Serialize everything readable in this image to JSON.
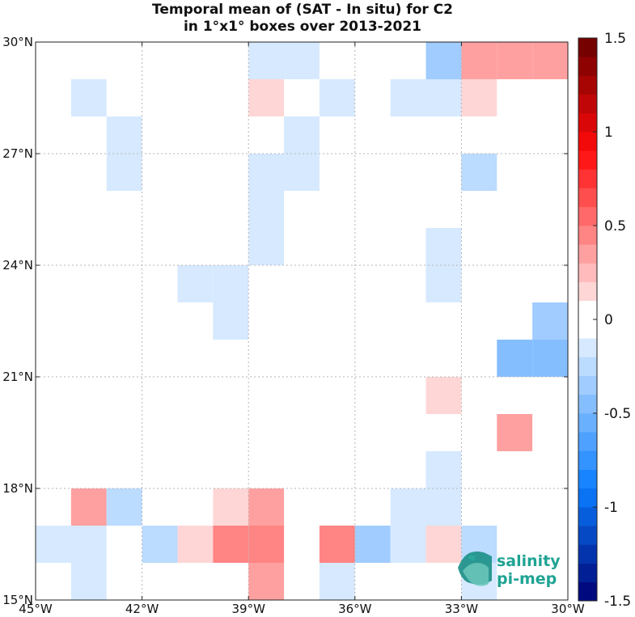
{
  "chart_data": {
    "type": "heatmap",
    "title": "Temporal mean of (SAT - In situ) for C2",
    "subtitle": "in 1°x1° boxes over 2013-2021",
    "xlabel": "",
    "ylabel": "",
    "xlim": [
      -45,
      -30
    ],
    "ylim": [
      15,
      30
    ],
    "x_ticks": [
      {
        "value": -45,
        "label": "45°W"
      },
      {
        "value": -42,
        "label": "42°W"
      },
      {
        "value": -39,
        "label": "39°W"
      },
      {
        "value": -36,
        "label": "36°W"
      },
      {
        "value": -33,
        "label": "33°W"
      },
      {
        "value": -30,
        "label": "30°W"
      }
    ],
    "y_ticks": [
      {
        "value": 15,
        "label": "15°N"
      },
      {
        "value": 18,
        "label": "18°N"
      },
      {
        "value": 21,
        "label": "21°N"
      },
      {
        "value": 24,
        "label": "24°N"
      },
      {
        "value": 27,
        "label": "27°N"
      },
      {
        "value": 30,
        "label": "30°N"
      }
    ],
    "grid": true,
    "colorbar": {
      "min": -1.5,
      "max": 1.5,
      "levels": 30,
      "ticks": [
        {
          "value": 1.5,
          "label": "1.5"
        },
        {
          "value": 1,
          "label": "1"
        },
        {
          "value": 0.5,
          "label": "0.5"
        },
        {
          "value": 0,
          "label": "0"
        },
        {
          "value": -0.5,
          "label": "-0.5"
        },
        {
          "value": -1,
          "label": "-1"
        },
        {
          "value": -1.5,
          "label": "-1.5"
        }
      ]
    },
    "cells": [
      {
        "lon": -39,
        "lat": 29,
        "value": -0.15
      },
      {
        "lon": -38,
        "lat": 29,
        "value": -0.15
      },
      {
        "lon": -34,
        "lat": 29,
        "value": -0.3
      },
      {
        "lon": -33,
        "lat": 29,
        "value": 0.35
      },
      {
        "lon": -32,
        "lat": 29,
        "value": 0.35
      },
      {
        "lon": -31,
        "lat": 29,
        "value": 0.35
      },
      {
        "lon": -44,
        "lat": 28,
        "value": -0.15
      },
      {
        "lon": -39,
        "lat": 28,
        "value": 0.15
      },
      {
        "lon": -37,
        "lat": 28,
        "value": -0.15
      },
      {
        "lon": -35,
        "lat": 28,
        "value": -0.15
      },
      {
        "lon": -34,
        "lat": 28,
        "value": -0.15
      },
      {
        "lon": -33,
        "lat": 28,
        "value": 0.15
      },
      {
        "lon": -43,
        "lat": 27,
        "value": -0.15
      },
      {
        "lon": -38,
        "lat": 27,
        "value": -0.15
      },
      {
        "lon": -43,
        "lat": 26,
        "value": -0.15
      },
      {
        "lon": -39,
        "lat": 26,
        "value": -0.15
      },
      {
        "lon": -38,
        "lat": 26,
        "value": -0.15
      },
      {
        "lon": -33,
        "lat": 26,
        "value": -0.25
      },
      {
        "lon": -39,
        "lat": 25,
        "value": -0.15
      },
      {
        "lon": -39,
        "lat": 24,
        "value": -0.15
      },
      {
        "lon": -34,
        "lat": 24,
        "value": -0.15
      },
      {
        "lon": -41,
        "lat": 23,
        "value": -0.15
      },
      {
        "lon": -40,
        "lat": 23,
        "value": -0.15
      },
      {
        "lon": -34,
        "lat": 23,
        "value": -0.15
      },
      {
        "lon": -40,
        "lat": 22,
        "value": -0.15
      },
      {
        "lon": -31,
        "lat": 22,
        "value": -0.35
      },
      {
        "lon": -32,
        "lat": 21,
        "value": -0.5
      },
      {
        "lon": -31,
        "lat": 21,
        "value": -0.5
      },
      {
        "lon": -34,
        "lat": 20,
        "value": 0.15
      },
      {
        "lon": -32,
        "lat": 19,
        "value": 0.3
      },
      {
        "lon": -34,
        "lat": 18,
        "value": -0.15
      },
      {
        "lon": -44,
        "lat": 17,
        "value": 0.3
      },
      {
        "lon": -43,
        "lat": 17,
        "value": -0.25
      },
      {
        "lon": -40,
        "lat": 17,
        "value": 0.15
      },
      {
        "lon": -39,
        "lat": 17,
        "value": 0.3
      },
      {
        "lon": -35,
        "lat": 17,
        "value": -0.15
      },
      {
        "lon": -34,
        "lat": 17,
        "value": -0.15
      },
      {
        "lon": -45,
        "lat": 16,
        "value": -0.15
      },
      {
        "lon": -44,
        "lat": 16,
        "value": -0.15
      },
      {
        "lon": -42,
        "lat": 16,
        "value": -0.25
      },
      {
        "lon": -41,
        "lat": 16,
        "value": 0.15
      },
      {
        "lon": -40,
        "lat": 16,
        "value": 0.45
      },
      {
        "lon": -39,
        "lat": 16,
        "value": 0.45
      },
      {
        "lon": -37,
        "lat": 16,
        "value": 0.45
      },
      {
        "lon": -36,
        "lat": 16,
        "value": -0.35
      },
      {
        "lon": -35,
        "lat": 16,
        "value": -0.15
      },
      {
        "lon": -34,
        "lat": 16,
        "value": 0.15
      },
      {
        "lon": -33,
        "lat": 16,
        "value": -0.25
      },
      {
        "lon": -44,
        "lat": 15,
        "value": -0.15
      },
      {
        "lon": -39,
        "lat": 15,
        "value": 0.3
      },
      {
        "lon": -37,
        "lat": 15,
        "value": -0.15
      },
      {
        "lon": -33,
        "lat": 15,
        "value": -0.15
      }
    ]
  },
  "logo": {
    "line1": "salinity",
    "line2": "pi-mep",
    "icon": "wave-icon",
    "color": "#1fa394"
  }
}
